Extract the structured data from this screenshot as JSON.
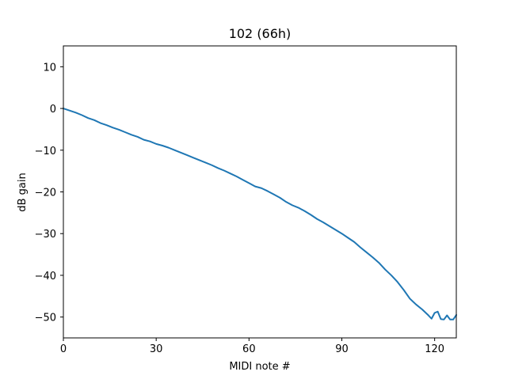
{
  "chart_data": {
    "type": "line",
    "title": "102 (66h)",
    "xlabel": "MIDI note #",
    "ylabel": "dB gain",
    "xlim": [
      0,
      127
    ],
    "ylim": [
      -55,
      15
    ],
    "x_ticks": [
      0,
      30,
      60,
      90,
      120
    ],
    "y_ticks": [
      10,
      0,
      -10,
      -20,
      -30,
      -40,
      -50
    ],
    "grid": false,
    "legend": "none",
    "series": [
      {
        "color": "#1f77b4",
        "points": [
          [
            0,
            0.0
          ],
          [
            2,
            -0.5
          ],
          [
            4,
            -1.0
          ],
          [
            6,
            -1.6
          ],
          [
            8,
            -2.3
          ],
          [
            10,
            -2.8
          ],
          [
            12,
            -3.5
          ],
          [
            14,
            -4.0
          ],
          [
            16,
            -4.6
          ],
          [
            18,
            -5.1
          ],
          [
            20,
            -5.7
          ],
          [
            22,
            -6.3
          ],
          [
            24,
            -6.8
          ],
          [
            26,
            -7.5
          ],
          [
            28,
            -7.9
          ],
          [
            30,
            -8.5
          ],
          [
            32,
            -8.9
          ],
          [
            34,
            -9.4
          ],
          [
            36,
            -10.0
          ],
          [
            38,
            -10.6
          ],
          [
            40,
            -11.2
          ],
          [
            42,
            -11.8
          ],
          [
            44,
            -12.4
          ],
          [
            46,
            -13.0
          ],
          [
            48,
            -13.6
          ],
          [
            50,
            -14.3
          ],
          [
            52,
            -14.9
          ],
          [
            54,
            -15.6
          ],
          [
            56,
            -16.3
          ],
          [
            58,
            -17.1
          ],
          [
            60,
            -17.9
          ],
          [
            62,
            -18.7
          ],
          [
            64,
            -19.1
          ],
          [
            66,
            -19.8
          ],
          [
            68,
            -20.6
          ],
          [
            70,
            -21.4
          ],
          [
            72,
            -22.4
          ],
          [
            74,
            -23.2
          ],
          [
            76,
            -23.8
          ],
          [
            78,
            -24.6
          ],
          [
            80,
            -25.5
          ],
          [
            82,
            -26.5
          ],
          [
            84,
            -27.3
          ],
          [
            86,
            -28.2
          ],
          [
            88,
            -29.1
          ],
          [
            90,
            -30.0
          ],
          [
            92,
            -31.0
          ],
          [
            94,
            -32.0
          ],
          [
            96,
            -33.3
          ],
          [
            98,
            -34.5
          ],
          [
            100,
            -35.7
          ],
          [
            102,
            -37.0
          ],
          [
            104,
            -38.6
          ],
          [
            106,
            -40.0
          ],
          [
            108,
            -41.6
          ],
          [
            110,
            -43.5
          ],
          [
            112,
            -45.6
          ],
          [
            114,
            -47.0
          ],
          [
            116,
            -48.2
          ],
          [
            118,
            -49.6
          ],
          [
            119,
            -50.4
          ],
          [
            120,
            -49.0
          ],
          [
            121,
            -48.7
          ],
          [
            122,
            -50.5
          ],
          [
            123,
            -50.6
          ],
          [
            124,
            -49.6
          ],
          [
            125,
            -50.6
          ],
          [
            126,
            -50.6
          ],
          [
            127,
            -49.5
          ]
        ]
      }
    ]
  }
}
